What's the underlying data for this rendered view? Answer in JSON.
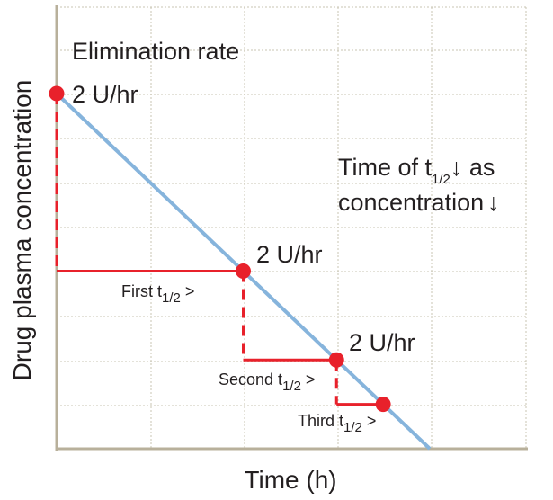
{
  "chart_data": {
    "type": "line",
    "xlabel": "Time (h)",
    "ylabel": "Drug plasma concentration",
    "grid": true,
    "colors": {
      "line": "#86b4dc",
      "steps": "#e8212b",
      "grid": "#c9c4b3",
      "axis": "#b8b09b",
      "text": "#231f20"
    },
    "series": [
      {
        "points": [
          {
            "t": 0,
            "c": 8
          },
          {
            "t": 8,
            "c": 0
          }
        ]
      }
    ],
    "markers": [
      {
        "t": 0,
        "c": 8
      },
      {
        "t": 4,
        "c": 4
      },
      {
        "t": 6,
        "c": 2
      },
      {
        "t": 7,
        "c": 1
      }
    ],
    "steps": [
      {
        "from_marker": 0,
        "to_marker": 1,
        "label": "First t",
        "sub": "1/2",
        "suffix": " >"
      },
      {
        "from_marker": 1,
        "to_marker": 2,
        "label": "Second t",
        "sub": "1/2",
        "suffix": " >"
      },
      {
        "from_marker": 2,
        "to_marker": 3,
        "label": "Third t",
        "sub": "1/2",
        "suffix": " >"
      }
    ],
    "rate_labels": [
      "2 U/hr",
      "2 U/hr",
      "2 U/hr"
    ],
    "annotations": {
      "title": "Elimination rate",
      "note_line1_pre": "Time of t",
      "note_line1_sub": "1/2",
      "note_line1_arrow": "↓",
      "note_line1_post": " as",
      "note_line2_pre": "concentration",
      "note_line2_arrow": "↓"
    }
  }
}
